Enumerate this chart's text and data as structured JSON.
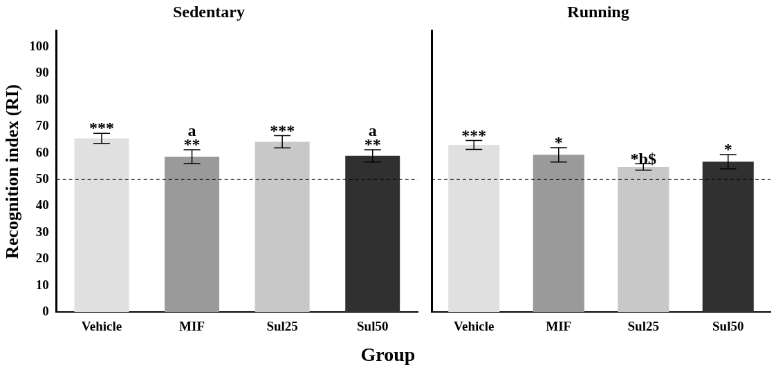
{
  "chart_data": [
    {
      "type": "bar",
      "title": "Sedentary",
      "ylabel": "Recognition index (RI)",
      "xlabel": "Group",
      "categories": [
        "Vehicle",
        "MIF",
        "Sul25",
        "Sul50"
      ],
      "values": [
        65.5,
        58.6,
        64.2,
        58.9
      ],
      "errors": [
        1.9,
        2.6,
        2.3,
        2.3
      ],
      "colors": [
        "#e0e0e0",
        "#9a9a9a",
        "#c8c8c8",
        "#303030"
      ],
      "ylim": [
        0,
        106
      ],
      "yticks": [
        0,
        10,
        20,
        30,
        40,
        50,
        60,
        70,
        80,
        90,
        100
      ],
      "grid": false,
      "legend": false,
      "ref_lines": [
        {
          "axis": "y",
          "value": 50,
          "line_style": "dashed",
          "color": "#000000"
        }
      ],
      "annotations": [
        {
          "text": "***",
          "x": "Vehicle",
          "y": 67.4
        },
        {
          "text": "**",
          "x": "MIF",
          "y": 61.2
        },
        {
          "text": "a",
          "x": "MIF",
          "y": 61.2
        },
        {
          "text": "***",
          "x": "Sul25",
          "y": 66.5
        },
        {
          "text": "**",
          "x": "Sul50",
          "y": 61.2
        },
        {
          "text": "a",
          "x": "Sul50",
          "y": 61.2
        }
      ]
    },
    {
      "type": "bar",
      "title": "Running",
      "categories": [
        "Vehicle",
        "MIF",
        "Sul25",
        "Sul50"
      ],
      "values": [
        63.0,
        59.3,
        54.7,
        56.7
      ],
      "errors": [
        1.7,
        2.7,
        1.2,
        2.7
      ],
      "colors": [
        "#e0e0e0",
        "#9a9a9a",
        "#c8c8c8",
        "#303030"
      ],
      "ylim": [
        0,
        106
      ],
      "yticks": [
        0,
        10,
        20,
        30,
        40,
        50,
        60,
        70,
        80,
        90,
        100
      ],
      "grid": false,
      "legend": false,
      "tick_labels": "x",
      "ref_lines": [
        {
          "axis": "y",
          "value": 50,
          "line_style": "dashed",
          "color": "#000000"
        }
      ],
      "annotations": [
        {
          "text": "***",
          "x": "Vehicle",
          "y": 64.7
        },
        {
          "text": "*",
          "x": "MIF",
          "y": 62.0
        },
        {
          "text": "*b$",
          "x": "Sul25",
          "y": 55.9
        },
        {
          "text": "*",
          "x": "Sul50",
          "y": 59.4
        }
      ]
    }
  ]
}
